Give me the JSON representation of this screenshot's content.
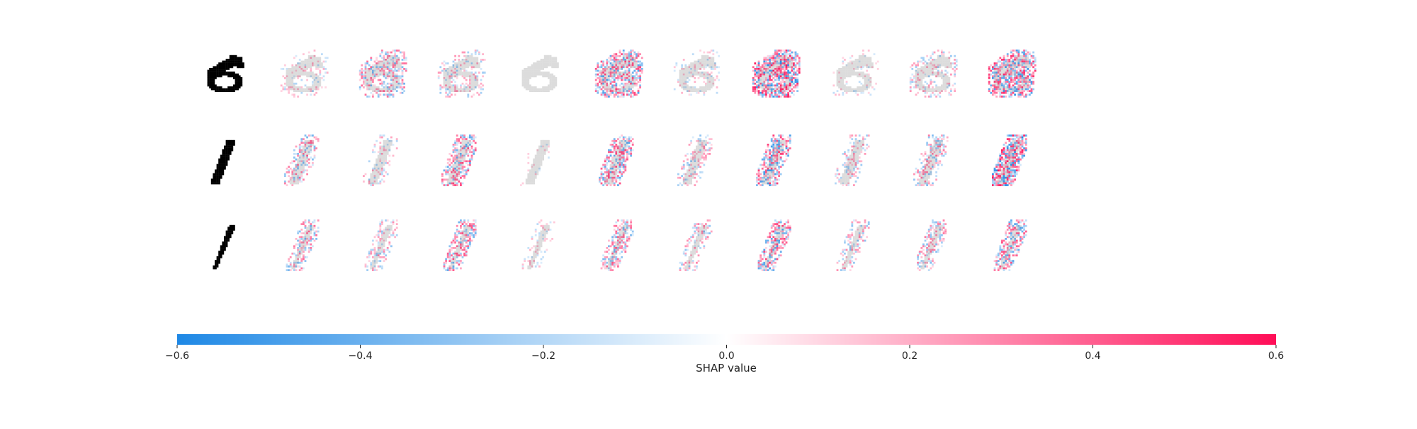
{
  "chart_data": {
    "type": "heatmap",
    "title": "",
    "rows": [
      {
        "input_digit": "6"
      },
      {
        "input_digit": "1"
      },
      {
        "input_digit": "1"
      }
    ],
    "num_explanation_panels": 10,
    "panel_intensity": [
      [
        0.25,
        0.55,
        0.35,
        0.0,
        0.75,
        0.2,
        0.95,
        0.15,
        0.35,
        0.85
      ],
      [
        0.55,
        0.3,
        0.7,
        0.1,
        0.7,
        0.4,
        0.8,
        0.35,
        0.5,
        0.95
      ],
      [
        0.55,
        0.4,
        0.65,
        0.2,
        0.6,
        0.45,
        0.75,
        0.4,
        0.5,
        0.7
      ]
    ],
    "colorbar": {
      "label": "SHAP value",
      "range": [
        -0.6,
        0.6
      ],
      "ticks": [
        -0.6,
        -0.4,
        -0.2,
        0.0,
        0.2,
        0.4,
        0.6
      ],
      "tick_labels": [
        "−0.6",
        "−0.4",
        "−0.2",
        "0.0",
        "0.2",
        "0.4",
        "0.6"
      ],
      "colors": {
        "negative": "#1e88e5",
        "zero": "#ffffff",
        "positive": "#ff0d57"
      }
    }
  }
}
